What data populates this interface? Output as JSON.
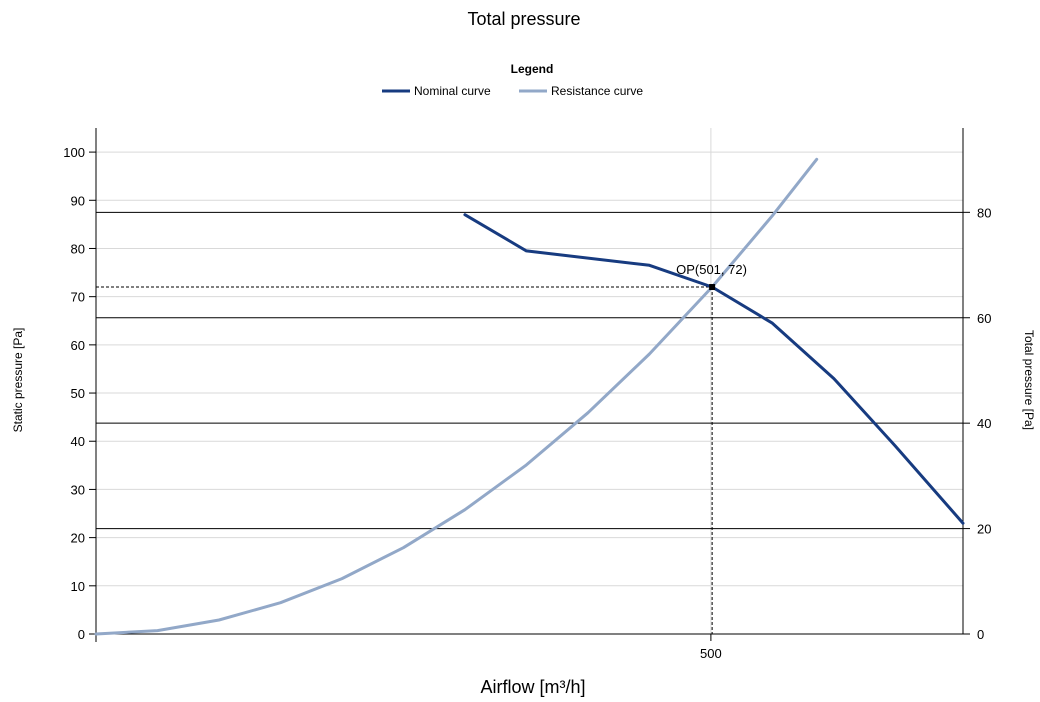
{
  "chart_data": {
    "type": "line",
    "title": "Total pressure",
    "legend": {
      "title": "Legend",
      "position": "top-center",
      "entries": [
        "Nominal curve",
        "Resistance curve"
      ]
    },
    "xlabel": "Airflow [m³/h]",
    "ylabel": "Static pressure [Pa]",
    "y2label": "Total pressure [Pa]",
    "xlim": [
      0,
      705
    ],
    "ylim": [
      0,
      105
    ],
    "y2lim": [
      0,
      96
    ],
    "x_ticks": [
      500
    ],
    "y_ticks": [
      0,
      10,
      20,
      30,
      40,
      50,
      60,
      70,
      80,
      90,
      100
    ],
    "y2_ticks": [
      0,
      20,
      40,
      60,
      80
    ],
    "grid": true,
    "colors": {
      "nominal": "#173b80",
      "resistance": "#92a8c8",
      "grid": "#d9d9d9",
      "axis": "#000000"
    },
    "series": [
      {
        "name": "Nominal curve",
        "x": [
          300,
          350,
          450,
          501,
          550,
          600,
          650,
          705
        ],
        "y": [
          87,
          79.5,
          76.5,
          72,
          64.5,
          53,
          39,
          23
        ]
      },
      {
        "name": "Resistance curve",
        "x": [
          0,
          50,
          100,
          150,
          200,
          250,
          300,
          350,
          400,
          450,
          501,
          550,
          586
        ],
        "y": [
          0,
          0.7,
          2.9,
          6.5,
          11.5,
          17.9,
          25.8,
          35.1,
          45.9,
          58.1,
          72.0,
          86.8,
          98.5
        ]
      }
    ],
    "operating_point": {
      "label": "OP(501, 72)",
      "x": 501,
      "y": 72
    },
    "total_pressure_lines": [
      20,
      40,
      60,
      80
    ]
  }
}
